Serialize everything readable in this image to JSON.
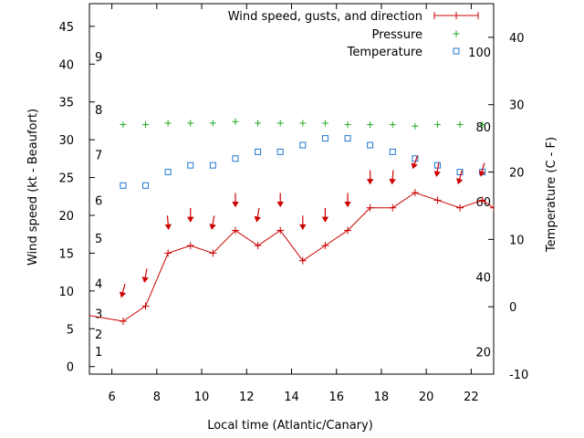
{
  "chart_data": {
    "type": "line",
    "title": "",
    "xlabel": "Local time (Atlantic/Canary)",
    "ylabel": "Wind speed (kt - Beaufort)",
    "y2label": "Temperature (C - F)",
    "xlim": [
      5,
      23
    ],
    "ylim": [
      -1,
      48
    ],
    "y2lim": [
      -10,
      45
    ],
    "x_ticks": [
      "6",
      "8",
      "10",
      "12",
      "14",
      "16",
      "18",
      "20",
      "22"
    ],
    "y_ticks": [
      "0",
      "5",
      "10",
      "15",
      "20",
      "25",
      "30",
      "35",
      "40",
      "45"
    ],
    "y2_ticks": [
      "-10",
      "0",
      "10",
      "20",
      "30",
      "40"
    ],
    "beaufort_labels": [
      {
        "label": "1",
        "value": 2
      },
      {
        "label": "2",
        "value": 4.3
      },
      {
        "label": "3",
        "value": 7
      },
      {
        "label": "4",
        "value": 11
      },
      {
        "label": "5",
        "value": 17
      },
      {
        "label": "6",
        "value": 22
      },
      {
        "label": "7",
        "value": 28
      },
      {
        "label": "8",
        "value": 34
      },
      {
        "label": "9",
        "value": 41
      }
    ],
    "fahrenheit_labels": [
      {
        "label": "20",
        "value": -6.7
      },
      {
        "label": "40",
        "value": 4.4
      },
      {
        "label": "60",
        "value": 15.6
      },
      {
        "label": "80",
        "value": 26.7
      },
      {
        "label": "100",
        "value": 37.8
      }
    ],
    "legend": {
      "position": "top-right",
      "entries": [
        {
          "label": "Wind speed, gusts, and direction",
          "color": "#cc0000"
        },
        {
          "label": "Pressure",
          "color": "#22aa22"
        },
        {
          "label": "Temperature",
          "color": "#1f77d0"
        }
      ]
    },
    "series": [
      {
        "name": "Wind speed, gusts, and direction",
        "axis": "left",
        "color": "#cc0000",
        "x": [
          4.5,
          6.5,
          7.5,
          8.5,
          9.5,
          10.5,
          11.5,
          12.5,
          13.5,
          14.5,
          15.5,
          16.5,
          17.5,
          18.5,
          19.5,
          20.5,
          21.5,
          22.5,
          23
        ],
        "values": [
          7,
          6,
          8,
          15,
          16,
          15,
          18,
          16,
          18,
          14,
          16,
          18,
          21,
          21,
          23,
          22,
          21,
          22,
          21
        ]
      },
      {
        "name": "Pressure",
        "axis": "left",
        "color": "#22aa22",
        "x": [
          6.5,
          7.5,
          8.5,
          9.5,
          10.5,
          11.5,
          12.5,
          13.5,
          14.5,
          15.5,
          16.5,
          17.5,
          18.5,
          19.5,
          20.5,
          21.5,
          22.5
        ],
        "values": [
          32,
          32,
          32.2,
          32.2,
          32.2,
          32.4,
          32.2,
          32.2,
          32.2,
          32.2,
          32,
          32,
          32,
          31.8,
          32,
          32,
          32
        ]
      },
      {
        "name": "Temperature",
        "axis": "right",
        "color": "#1f77d0",
        "x": [
          6.5,
          7.5,
          8.5,
          9.5,
          10.5,
          11.5,
          12.5,
          13.5,
          14.5,
          15.5,
          16.5,
          17.5,
          18.5,
          19.5,
          20.5,
          21.5,
          22.5
        ],
        "values": [
          18,
          18,
          20,
          21,
          21,
          22,
          23,
          23,
          24,
          25,
          25,
          24,
          23,
          22,
          21,
          20,
          20
        ]
      }
    ],
    "wind_arrows": {
      "color": "#cc0000",
      "x": [
        6.5,
        7.5,
        8.5,
        9.5,
        10.5,
        11.5,
        12.5,
        13.5,
        14.5,
        15.5,
        16.5,
        17.5,
        18.5,
        19.5,
        20.5,
        21.5,
        22.5
      ],
      "y": [
        10,
        12,
        19,
        20,
        19,
        22,
        20,
        22,
        19,
        20,
        22,
        25,
        25,
        27,
        26,
        25,
        26
      ],
      "direction_deg": [
        15,
        10,
        355,
        0,
        10,
        0,
        10,
        0,
        0,
        0,
        0,
        0,
        5,
        20,
        10,
        15,
        15
      ]
    }
  }
}
